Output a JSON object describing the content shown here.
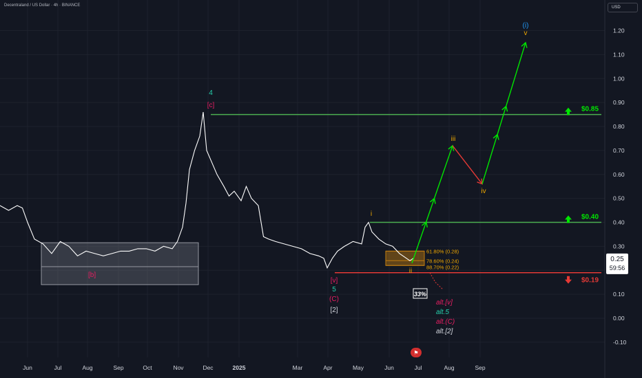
{
  "header": {
    "title": "Decentraland / US Dollar · 4h · BINANCE"
  },
  "currency_button": "USD",
  "colors": {
    "background": "#131722",
    "price_line": "#ffffff",
    "green": "#4caf50",
    "bright_green": "#00e600",
    "red": "#e53935",
    "pink": "#e91e63",
    "orange": "#f0a800",
    "teal": "#26d0ac",
    "blue": "#2196f3",
    "grid": "#1e222d"
  },
  "chart_data": {
    "type": "line",
    "title": "Decentraland / US Dollar · 4h · BINANCE",
    "y_axis": {
      "ticks": [
        1.2,
        1.1,
        1.0,
        0.9,
        0.8,
        0.7,
        0.6,
        0.5,
        0.4,
        0.3,
        0.2,
        0.1,
        0.0,
        -0.1
      ],
      "range": [
        -0.13,
        1.32
      ]
    },
    "x_axis": {
      "tick_labels": [
        "Jun",
        "Jul",
        "Aug",
        "Sep",
        "Oct",
        "Nov",
        "Dec",
        "2025",
        "Mar",
        "Apr",
        "May",
        "Jun",
        "Jul",
        "Aug",
        "Sep"
      ]
    },
    "current_price": {
      "label": "0.25",
      "timer": "59:56"
    },
    "price_series": [
      [
        0,
        0.47
      ],
      [
        0.5,
        0.45
      ],
      [
        1,
        0.47
      ],
      [
        1.3,
        0.46
      ],
      [
        1.6,
        0.4
      ],
      [
        2,
        0.33
      ],
      [
        2.5,
        0.31
      ],
      [
        3,
        0.27
      ],
      [
        3.5,
        0.32
      ],
      [
        4,
        0.3
      ],
      [
        4.5,
        0.26
      ],
      [
        5,
        0.28
      ],
      [
        5.5,
        0.27
      ],
      [
        6,
        0.26
      ],
      [
        6.5,
        0.27
      ],
      [
        7,
        0.28
      ],
      [
        7.5,
        0.28
      ],
      [
        8,
        0.29
      ],
      [
        8.5,
        0.29
      ],
      [
        9,
        0.28
      ],
      [
        9.5,
        0.3
      ],
      [
        10,
        0.29
      ],
      [
        10.3,
        0.32
      ],
      [
        10.6,
        0.38
      ],
      [
        10.8,
        0.48
      ],
      [
        11,
        0.62
      ],
      [
        11.3,
        0.7
      ],
      [
        11.6,
        0.76
      ],
      [
        11.8,
        0.86
      ],
      [
        12,
        0.7
      ],
      [
        12.3,
        0.65
      ],
      [
        12.6,
        0.6
      ],
      [
        13,
        0.55
      ],
      [
        13.3,
        0.51
      ],
      [
        13.6,
        0.53
      ],
      [
        14,
        0.49
      ],
      [
        14.3,
        0.55
      ],
      [
        14.6,
        0.5
      ],
      [
        15,
        0.47
      ],
      [
        15.3,
        0.34
      ],
      [
        15.6,
        0.33
      ],
      [
        16,
        0.32
      ],
      [
        16.5,
        0.31
      ],
      [
        17,
        0.3
      ],
      [
        17.5,
        0.29
      ],
      [
        18,
        0.27
      ],
      [
        18.5,
        0.26
      ],
      [
        18.8,
        0.25
      ],
      [
        19,
        0.21
      ],
      [
        19.3,
        0.25
      ],
      [
        19.6,
        0.28
      ],
      [
        20,
        0.3
      ],
      [
        20.5,
        0.32
      ],
      [
        21,
        0.31
      ],
      [
        21.2,
        0.38
      ],
      [
        21.4,
        0.4
      ],
      [
        21.6,
        0.36
      ],
      [
        22,
        0.33
      ],
      [
        22.4,
        0.31
      ],
      [
        22.8,
        0.3
      ],
      [
        23.2,
        0.27
      ],
      [
        23.6,
        0.25
      ],
      [
        23.8,
        0.24
      ],
      [
        24,
        0.25
      ]
    ],
    "levels": [
      {
        "name": "upper",
        "label": "$0.85",
        "value": 0.85,
        "direction": "up",
        "color": "#4caf50"
      },
      {
        "name": "middle",
        "label": "$0.40",
        "value": 0.4,
        "direction": "up",
        "color": "#4caf50"
      },
      {
        "name": "lower",
        "label": "$0.19",
        "value": 0.19,
        "direction": "down",
        "color": "#e53935"
      }
    ],
    "zones": [
      {
        "name": "range-box",
        "y_top": 0.315,
        "y_mid": 0.215,
        "y_bottom": 0.14,
        "label": "[b]",
        "color": "#9e9e9e"
      },
      {
        "name": "fib-box",
        "y_top": 0.28,
        "y_bottom": 0.22,
        "color": "#c07c10"
      }
    ],
    "fib_labels": [
      "61.80% (0.28)",
      "78.60% (0.24)",
      "88.70% (0.22)"
    ],
    "projection_path": [
      {
        "y": 0.23,
        "color": "#00e600"
      },
      {
        "y": 0.72,
        "color": "#00e600"
      },
      {
        "y": 0.56,
        "color": "#e53935"
      },
      {
        "y": 1.15,
        "color": "#00e600"
      }
    ],
    "wave_labels": [
      {
        "text": "4",
        "color": "#26d0ac"
      },
      {
        "text": "[c]",
        "color": "#e91e63"
      },
      {
        "text": "i",
        "color": "#f0a800"
      },
      {
        "text": "ii",
        "color": "#f0a800"
      },
      {
        "text": "iii",
        "color": "#f0a800"
      },
      {
        "text": "iv",
        "color": "#f0a800"
      },
      {
        "text": "v",
        "color": "#f0a800"
      },
      {
        "text": "(i)",
        "color": "#2196f3"
      },
      {
        "text": "[v]",
        "color": "#e91e63"
      },
      {
        "text": "5",
        "color": "#26d0ac"
      },
      {
        "text": "(C)",
        "color": "#e91e63"
      },
      {
        "text": "[2]",
        "color": "#d1d4dc"
      }
    ],
    "alt_labels": [
      {
        "text": "alt.[v]",
        "color": "#e91e63"
      },
      {
        "text": "alt.5",
        "color": "#26d0ac"
      },
      {
        "text": "alt.(C)",
        "color": "#e91e63"
      },
      {
        "text": "alt.[2]",
        "color": "#d1d4dc"
      }
    ],
    "probability": "33%"
  }
}
